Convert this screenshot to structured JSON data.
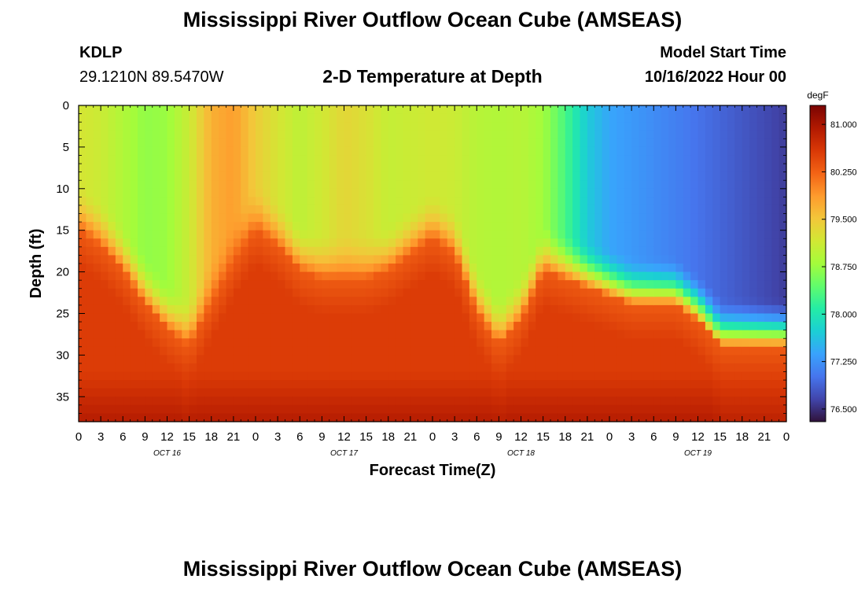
{
  "main_title": "Mississippi River Outflow Ocean Cube (AMSEAS)",
  "station": {
    "id": "KDLP",
    "coords": "29.1210N  89.5470W"
  },
  "model": {
    "label": "Model Start Time",
    "time": "10/16/2022 Hour 00"
  },
  "chart_data": {
    "type": "heatmap",
    "title": "2-D Temperature at Depth",
    "xlabel": "Forecast Time(Z)",
    "ylabel": "Depth (ft)",
    "x_range_hours": [
      0,
      96
    ],
    "x_ticks": [
      "0",
      "3",
      "6",
      "9",
      "12",
      "15",
      "18",
      "21",
      "0",
      "3",
      "6",
      "9",
      "12",
      "15",
      "18",
      "21",
      "0",
      "3",
      "6",
      "9",
      "12",
      "15",
      "18",
      "21",
      "0",
      "3",
      "6",
      "9",
      "12",
      "15",
      "18",
      "21",
      "0"
    ],
    "day_labels": [
      {
        "label": "OCT 16",
        "hour": 12
      },
      {
        "label": "OCT 17",
        "hour": 36
      },
      {
        "label": "OCT 18",
        "hour": 60
      },
      {
        "label": "OCT 19",
        "hour": 84
      }
    ],
    "y_range_ft": [
      0,
      38
    ],
    "y_ticks": [
      "0",
      "5",
      "10",
      "15",
      "20",
      "25",
      "30",
      "35"
    ],
    "colorbar": {
      "unit": "degF",
      "range": [
        76.3,
        81.3
      ],
      "ticks": [
        "81.000",
        "80.250",
        "79.500",
        "78.750",
        "78.000",
        "77.250",
        "76.500"
      ],
      "palette": [
        "#30123b",
        "#4145ab",
        "#4675ed",
        "#39a2fc",
        "#1bcfd4",
        "#24eca6",
        "#61fc6c",
        "#a4fc3b",
        "#d1e834",
        "#f3c63a",
        "#fe9b2d",
        "#f36315",
        "#d93806",
        "#b11901",
        "#7a0402"
      ]
    },
    "surface_temperature_by_hour": [
      {
        "hour": 0,
        "temp": 79.2
      },
      {
        "hour": 3,
        "temp": 79.1
      },
      {
        "hour": 6,
        "temp": 78.9
      },
      {
        "hour": 9,
        "temp": 78.7
      },
      {
        "hour": 12,
        "temp": 78.75
      },
      {
        "hour": 15,
        "temp": 79.1
      },
      {
        "hour": 18,
        "temp": 79.7
      },
      {
        "hour": 21,
        "temp": 79.85
      },
      {
        "hour": 24,
        "temp": 79.45
      },
      {
        "hour": 27,
        "temp": 79.2
      },
      {
        "hour": 30,
        "temp": 79.0
      },
      {
        "hour": 33,
        "temp": 79.15
      },
      {
        "hour": 36,
        "temp": 79.35
      },
      {
        "hour": 39,
        "temp": 79.25
      },
      {
        "hour": 42,
        "temp": 79.05
      },
      {
        "hour": 45,
        "temp": 79.1
      },
      {
        "hour": 48,
        "temp": 79.15
      },
      {
        "hour": 51,
        "temp": 79.1
      },
      {
        "hour": 54,
        "temp": 78.95
      },
      {
        "hour": 57,
        "temp": 78.9
      },
      {
        "hour": 60,
        "temp": 78.95
      },
      {
        "hour": 63,
        "temp": 78.8
      },
      {
        "hour": 66,
        "temp": 78.3
      },
      {
        "hour": 69,
        "temp": 77.7
      },
      {
        "hour": 72,
        "temp": 77.4
      },
      {
        "hour": 75,
        "temp": 77.3
      },
      {
        "hour": 78,
        "temp": 77.2
      },
      {
        "hour": 81,
        "temp": 77.1
      },
      {
        "hour": 84,
        "temp": 77.0
      },
      {
        "hour": 87,
        "temp": 76.9
      },
      {
        "hour": 90,
        "temp": 76.8
      },
      {
        "hour": 93,
        "temp": 76.7
      },
      {
        "hour": 96,
        "temp": 76.6
      }
    ],
    "thermocline_depth_ft_by_hour": [
      {
        "hour": 0,
        "depth": 15
      },
      {
        "hour": 3,
        "depth": 17
      },
      {
        "hour": 6,
        "depth": 20
      },
      {
        "hour": 9,
        "depth": 24
      },
      {
        "hour": 12,
        "depth": 27
      },
      {
        "hour": 15,
        "depth": 29
      },
      {
        "hour": 18,
        "depth": 24
      },
      {
        "hour": 21,
        "depth": 19
      },
      {
        "hour": 24,
        "depth": 15
      },
      {
        "hour": 27,
        "depth": 17
      },
      {
        "hour": 30,
        "depth": 20
      },
      {
        "hour": 33,
        "depth": 21
      },
      {
        "hour": 36,
        "depth": 21
      },
      {
        "hour": 39,
        "depth": 21
      },
      {
        "hour": 42,
        "depth": 20
      },
      {
        "hour": 45,
        "depth": 18
      },
      {
        "hour": 48,
        "depth": 16
      },
      {
        "hour": 51,
        "depth": 18
      },
      {
        "hour": 54,
        "depth": 25
      },
      {
        "hour": 57,
        "depth": 29
      },
      {
        "hour": 60,
        "depth": 26
      },
      {
        "hour": 63,
        "depth": 20
      },
      {
        "hour": 66,
        "depth": 21
      },
      {
        "hour": 69,
        "depth": 22
      },
      {
        "hour": 72,
        "depth": 23
      },
      {
        "hour": 75,
        "depth": 24
      },
      {
        "hour": 78,
        "depth": 24
      },
      {
        "hour": 81,
        "depth": 24
      },
      {
        "hour": 84,
        "depth": 26
      },
      {
        "hour": 87,
        "depth": 29
      },
      {
        "hour": 90,
        "depth": 29
      },
      {
        "hour": 93,
        "depth": 29
      },
      {
        "hour": 96,
        "depth": 29
      }
    ]
  }
}
